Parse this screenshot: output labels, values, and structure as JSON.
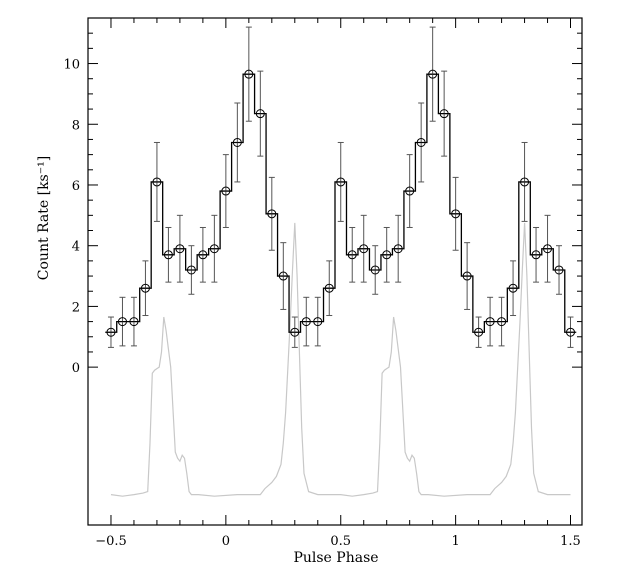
{
  "chart_data": {
    "type": "line",
    "title": "",
    "xlabel": "Pulse Phase",
    "ylabel": "Count Rate [ks⁻¹]",
    "xlim": [
      -0.6,
      1.55
    ],
    "ylim": [
      -5.2,
      11.5
    ],
    "grid": false,
    "x_ticks": [
      {
        "value": -0.5,
        "label": "−0.5"
      },
      {
        "value": 0,
        "label": "0"
      },
      {
        "value": 0.5,
        "label": "0.5"
      },
      {
        "value": 1,
        "label": "1"
      },
      {
        "value": 1.5,
        "label": "1.5"
      }
    ],
    "y_ticks": [
      {
        "value": 0,
        "label": "0"
      },
      {
        "value": 2,
        "label": "2"
      },
      {
        "value": 4,
        "label": "4"
      },
      {
        "value": 6,
        "label": "6"
      },
      {
        "value": 8,
        "label": "8"
      },
      {
        "value": 10,
        "label": "10"
      }
    ],
    "bin_width": 0.05,
    "series": [
      {
        "style": "histogram-with-errorbars",
        "color": "#000000",
        "errorbar_color": "#555555",
        "x": [
          -0.5,
          -0.45,
          -0.4,
          -0.35,
          -0.3,
          -0.25,
          -0.2,
          -0.15,
          -0.1,
          -0.05,
          0,
          0.05,
          0.1,
          0.15,
          0.2,
          0.25,
          0.3,
          0.35,
          0.4,
          0.45,
          0.5,
          0.55,
          0.6,
          0.65,
          0.7,
          0.75,
          0.8,
          0.85,
          0.9,
          0.95,
          1,
          1.05,
          1.1,
          1.15,
          1.2,
          1.25,
          1.3,
          1.35,
          1.4,
          1.45,
          1.5
        ],
        "y": [
          1.15,
          1.5,
          1.5,
          2.6,
          6.1,
          3.7,
          3.9,
          3.2,
          3.7,
          3.9,
          5.8,
          7.4,
          9.65,
          8.35,
          5.05,
          3.0,
          1.15,
          1.5,
          1.5,
          2.6,
          6.1,
          3.7,
          3.9,
          3.2,
          3.7,
          3.9,
          5.8,
          7.4,
          9.65,
          8.35,
          5.05,
          3.0,
          1.15,
          1.5,
          1.5,
          2.6,
          6.1,
          3.7,
          3.9,
          3.2,
          1.15
        ],
        "yerr": [
          0.5,
          0.8,
          0.8,
          0.9,
          1.3,
          0.9,
          1.1,
          0.8,
          0.9,
          1.1,
          1.2,
          1.3,
          1.55,
          1.4,
          1.2,
          1.1,
          0.5,
          0.8,
          0.8,
          0.9,
          1.3,
          0.9,
          1.1,
          0.8,
          0.9,
          1.1,
          1.2,
          1.3,
          1.55,
          1.4,
          1.2,
          1.1,
          0.5,
          0.8,
          0.8,
          0.9,
          1.3,
          0.9,
          1.1,
          0.8,
          0.5
        ]
      },
      {
        "style": "profile-line",
        "color": "#c8c8c8",
        "x": [
          -0.5,
          -0.45,
          -0.4,
          -0.36,
          -0.34,
          -0.33,
          -0.32,
          -0.31,
          -0.3,
          -0.29,
          -0.28,
          -0.27,
          -0.26,
          -0.25,
          -0.24,
          -0.23,
          -0.22,
          -0.21,
          -0.2,
          -0.19,
          -0.18,
          -0.17,
          -0.16,
          -0.15,
          -0.12,
          -0.05,
          0.05,
          0.15,
          0.17,
          0.2,
          0.22,
          0.24,
          0.25,
          0.26,
          0.27,
          0.28,
          0.29,
          0.3,
          0.31,
          0.32,
          0.33,
          0.34,
          0.36,
          0.4,
          0.5,
          0.5,
          0.55,
          0.6,
          0.64,
          0.66,
          0.67,
          0.68,
          0.69,
          0.7,
          0.71,
          0.72,
          0.73,
          0.74,
          0.75,
          0.76,
          0.77,
          0.78,
          0.79,
          0.8,
          0.81,
          0.82,
          0.83,
          0.84,
          0.85,
          0.88,
          0.95,
          1.05,
          1.15,
          1.17,
          1.2,
          1.22,
          1.24,
          1.25,
          1.26,
          1.27,
          1.28,
          1.29,
          1.3,
          1.31,
          1.32,
          1.33,
          1.34,
          1.36,
          1.4,
          1.5
        ],
        "y": [
          -4.2,
          -4.25,
          -4.2,
          -4.15,
          -4.1,
          -2.5,
          -0.2,
          -0.1,
          -0.05,
          0.0,
          0.5,
          1.65,
          1.2,
          0.6,
          0.0,
          -1.4,
          -2.8,
          -3.0,
          -3.1,
          -2.9,
          -3.0,
          -3.5,
          -4.1,
          -4.2,
          -4.2,
          -4.25,
          -4.2,
          -4.2,
          -4.0,
          -3.8,
          -3.6,
          -3.2,
          -2.5,
          -1.5,
          0.0,
          1.5,
          3.2,
          4.75,
          3.0,
          0.5,
          -2.0,
          -3.5,
          -4.1,
          -4.2,
          -4.2,
          -4.2,
          -4.25,
          -4.2,
          -4.15,
          -4.1,
          -2.5,
          -0.2,
          -0.1,
          -0.05,
          0.0,
          0.5,
          1.65,
          1.2,
          0.6,
          0.0,
          -1.4,
          -2.8,
          -3.0,
          -3.1,
          -2.9,
          -3.0,
          -3.5,
          -4.1,
          -4.2,
          -4.2,
          -4.25,
          -4.2,
          -4.2,
          -4.0,
          -3.8,
          -3.6,
          -3.2,
          -2.5,
          -1.5,
          0.0,
          1.5,
          3.2,
          4.75,
          3.0,
          0.5,
          -2.0,
          -3.5,
          -4.1,
          -4.2,
          -4.2
        ]
      }
    ]
  }
}
